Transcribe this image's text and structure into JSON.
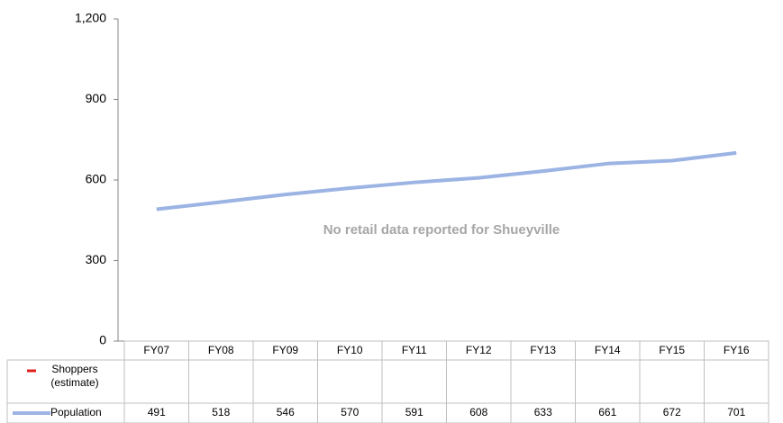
{
  "chart_data": {
    "type": "line",
    "annotation": "No retail data reported for Shueyville",
    "categories": [
      "FY07",
      "FY08",
      "FY09",
      "FY10",
      "FY11",
      "FY12",
      "FY13",
      "FY14",
      "FY15",
      "FY16"
    ],
    "series": [
      {
        "name": "Shoppers (estimate)",
        "color": "#e0201b",
        "values": [
          null,
          null,
          null,
          null,
          null,
          null,
          null,
          null,
          null,
          null
        ]
      },
      {
        "name": "Population",
        "color": "#9bb4e3",
        "values": [
          491,
          518,
          546,
          570,
          591,
          608,
          633,
          661,
          672,
          701
        ]
      }
    ],
    "ylim": [
      0,
      1200
    ],
    "yticks": [
      0,
      300,
      600,
      900,
      {
        "value": 1200,
        "label": "1,200"
      }
    ],
    "grid": false
  }
}
